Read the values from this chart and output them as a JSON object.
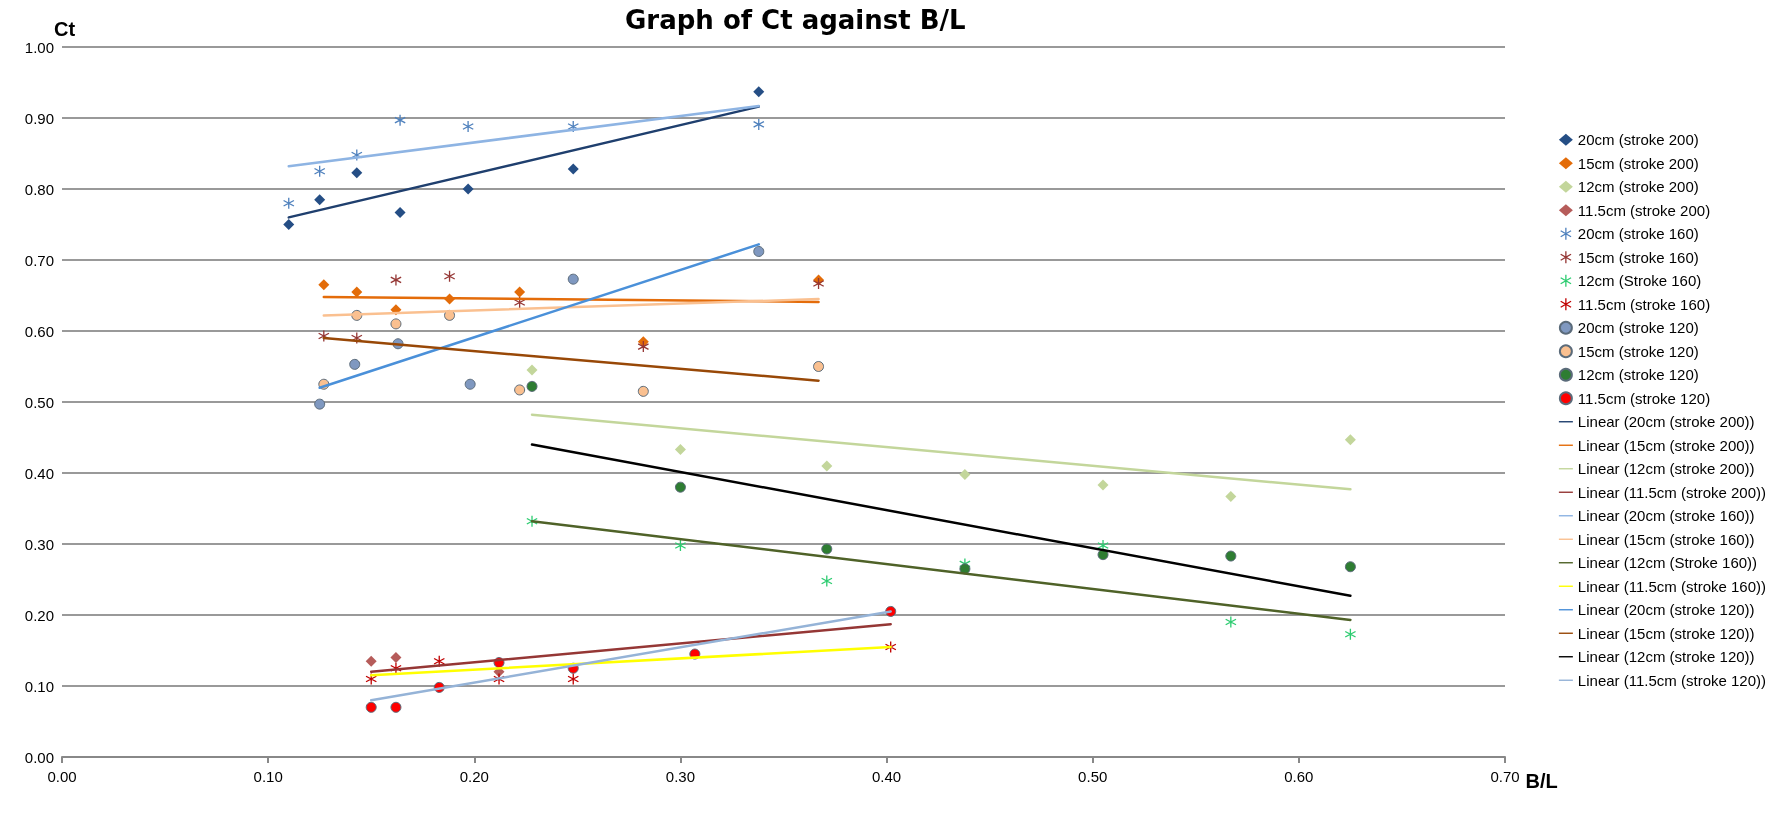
{
  "chart_data": {
    "type": "scatter",
    "title": "Graph of Ct against B/L",
    "xlabel": "B/L",
    "ylabel": "Ct",
    "xlim": [
      0,
      0.7
    ],
    "ylim": [
      0,
      1
    ],
    "xticks": [
      {
        "value": 0,
        "label": "0.00"
      },
      {
        "value": 0.1,
        "label": "0.10"
      },
      {
        "value": 0.2,
        "label": "0.20"
      },
      {
        "value": 0.3,
        "label": "0.30"
      },
      {
        "value": 0.4,
        "label": "0.40"
      },
      {
        "value": 0.5,
        "label": "0.50"
      },
      {
        "value": 0.6,
        "label": "0.60"
      },
      {
        "value": 0.7,
        "label": "0.70"
      }
    ],
    "yticks": [
      {
        "value": 0,
        "label": "0.00"
      },
      {
        "value": 0.1,
        "label": "0.10"
      },
      {
        "value": 0.2,
        "label": "0.20"
      },
      {
        "value": 0.3,
        "label": "0.30"
      },
      {
        "value": 0.4,
        "label": "0.40"
      },
      {
        "value": 0.5,
        "label": "0.50"
      },
      {
        "value": 0.6,
        "label": "0.60"
      },
      {
        "value": 0.7,
        "label": "0.70"
      },
      {
        "value": 0.8,
        "label": "0.80"
      },
      {
        "value": 0.9,
        "label": "0.90"
      },
      {
        "value": 1,
        "label": "1.00"
      }
    ],
    "grid": "y",
    "legend": "right",
    "series": [
      {
        "name": "20cm (stroke 200)",
        "marker": "diamond",
        "color": "#254e85",
        "x": [
          0.11,
          0.125,
          0.143,
          0.164,
          0.197,
          0.248,
          0.338
        ],
        "values": [
          0.75,
          0.785,
          0.823,
          0.767,
          0.8,
          0.828,
          0.937
        ]
      },
      {
        "name": "15cm (stroke 200)",
        "marker": "diamond",
        "color": "#e36c09",
        "x": [
          0.127,
          0.143,
          0.162,
          0.188,
          0.222,
          0.282,
          0.367
        ],
        "values": [
          0.665,
          0.655,
          0.63,
          0.645,
          0.655,
          0.585,
          0.672
        ]
      },
      {
        "name": "12cm (stroke 200)",
        "marker": "diamond",
        "color": "#c3d69b",
        "x": [
          0.228,
          0.3,
          0.371,
          0.438,
          0.505,
          0.567,
          0.625
        ],
        "values": [
          0.545,
          0.433,
          0.41,
          0.398,
          0.383,
          0.367,
          0.447
        ]
      },
      {
        "name": "11.5cm (stroke 200)",
        "marker": "diamond",
        "color": "#b65c5a",
        "x": [
          0.15,
          0.162,
          0.183,
          0.212
        ],
        "values": [
          0.135,
          0.14,
          null,
          0.12
        ]
      },
      {
        "name": "20cm (stroke 160)",
        "marker": "cross",
        "color": "#4f81bd",
        "x": [
          0.11,
          0.125,
          0.143,
          0.164,
          0.197,
          0.248,
          0.338
        ],
        "values": [
          0.78,
          0.825,
          0.848,
          0.897,
          0.888,
          0.888,
          0.891
        ]
      },
      {
        "name": "15cm (stroke 160)",
        "marker": "cross",
        "color": "#953735",
        "x": [
          0.127,
          0.143,
          0.162,
          0.188,
          0.222,
          0.282,
          0.367
        ],
        "values": [
          0.593,
          0.59,
          0.672,
          0.677,
          0.64,
          0.578,
          0.667
        ]
      },
      {
        "name": "12cm (Stroke 160)",
        "marker": "cross",
        "color": "#2ecc71",
        "x": [
          0.228,
          0.3,
          0.371,
          0.438,
          0.505,
          0.567,
          0.625
        ],
        "values": [
          0.332,
          0.298,
          0.248,
          0.272,
          0.298,
          0.19,
          0.173
        ]
      },
      {
        "name": "11.5cm (stroke 160)",
        "marker": "cross",
        "color": "#c00000",
        "x": [
          0.15,
          0.162,
          0.183,
          0.212,
          0.248,
          0.402
        ],
        "values": [
          0.11,
          0.125,
          0.135,
          0.11,
          0.11,
          0.155
        ]
      },
      {
        "name": "20cm (stroke 120)",
        "marker": "circle",
        "color": "#7f98c0",
        "x": [
          0.125,
          0.142,
          0.163,
          0.198,
          0.248,
          0.338
        ],
        "values": [
          0.497,
          0.553,
          0.582,
          0.525,
          0.673,
          0.712
        ]
      },
      {
        "name": "15cm (stroke 120)",
        "marker": "circle",
        "color": "#fac090",
        "x": [
          0.127,
          0.143,
          0.162,
          0.188,
          0.222,
          0.282,
          0.367
        ],
        "values": [
          0.525,
          0.622,
          0.61,
          0.622,
          0.517,
          0.515,
          0.55
        ]
      },
      {
        "name": "12cm (stroke 120)",
        "marker": "circle",
        "color": "#2e7d32",
        "x": [
          0.228,
          0.3,
          0.371,
          0.438,
          0.505,
          0.567,
          0.625
        ],
        "values": [
          0.522,
          0.38,
          0.293,
          0.265,
          0.285,
          0.283,
          0.268
        ]
      },
      {
        "name": "11.5cm (stroke 120)",
        "marker": "circle",
        "color": "#ff0000",
        "x": [
          0.15,
          0.162,
          0.183,
          0.212,
          0.248,
          0.307,
          0.402
        ],
        "values": [
          0.07,
          0.07,
          0.098,
          0.133,
          0.125,
          0.145,
          0.205
        ]
      },
      {
        "name": "Linear (20cm (stroke 200))",
        "type": "line",
        "marker": "none",
        "color": "#1f3f6e",
        "x": [
          0.11,
          0.338
        ],
        "values": [
          0.76,
          0.916
        ]
      },
      {
        "name": "Linear (15cm (stroke 200))",
        "type": "line",
        "marker": "none",
        "color": "#e46c0a",
        "x": [
          0.127,
          0.367
        ],
        "values": [
          0.648,
          0.641
        ]
      },
      {
        "name": "Linear (12cm (stroke 200))",
        "type": "line",
        "marker": "none",
        "color": "#c3d69b",
        "x": [
          0.228,
          0.625
        ],
        "values": [
          0.482,
          0.377
        ]
      },
      {
        "name": "Linear (11.5cm (stroke 200))",
        "type": "line",
        "marker": "none",
        "color": "#953735",
        "x": [
          0.15,
          0.402
        ],
        "values": [
          0.12,
          0.187
        ]
      },
      {
        "name": "Linear (20cm (stroke 160))",
        "type": "line",
        "marker": "none",
        "color": "#8eb4e3",
        "x": [
          0.11,
          0.338
        ],
        "values": [
          0.832,
          0.917
        ]
      },
      {
        "name": "Linear (15cm (stroke 160))",
        "type": "line",
        "marker": "none",
        "color": "#fac090",
        "x": [
          0.127,
          0.367
        ],
        "values": [
          0.622,
          0.645
        ]
      },
      {
        "name": "Linear (12cm (Stroke 160))",
        "type": "line",
        "marker": "none",
        "color": "#4f6228",
        "x": [
          0.228,
          0.625
        ],
        "values": [
          0.332,
          0.193
        ]
      },
      {
        "name": "Linear (11.5cm (stroke 160))",
        "type": "line",
        "marker": "none",
        "color": "#ffff00",
        "x": [
          0.15,
          0.402
        ],
        "values": [
          0.115,
          0.155
        ]
      },
      {
        "name": "Linear (20cm (stroke 120))",
        "type": "line",
        "marker": "none",
        "color": "#4a90d9",
        "x": [
          0.125,
          0.338
        ],
        "values": [
          0.52,
          0.722
        ]
      },
      {
        "name": "Linear (15cm (stroke 120))",
        "type": "line",
        "marker": "none",
        "color": "#984807",
        "x": [
          0.127,
          0.367
        ],
        "values": [
          0.59,
          0.53
        ]
      },
      {
        "name": "Linear (12cm (stroke 120))",
        "type": "line",
        "marker": "none",
        "color": "#000000",
        "x": [
          0.228,
          0.625
        ],
        "values": [
          0.44,
          0.227
        ]
      },
      {
        "name": "Linear (11.5cm (stroke 120))",
        "type": "line",
        "marker": "none",
        "color": "#95b3d7",
        "x": [
          0.15,
          0.402
        ],
        "values": [
          0.08,
          0.205
        ]
      }
    ]
  }
}
